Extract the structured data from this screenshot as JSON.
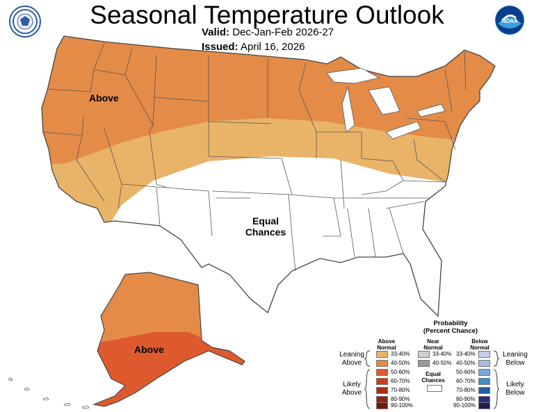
{
  "header": {
    "title": "Seasonal Temperature Outlook",
    "valid_label": "Valid:",
    "valid_value": "Dec-Jan-Feb 2026-27",
    "issued_label": "Issued:",
    "issued_value": "April 16, 2026"
  },
  "logos": {
    "left": "department-of-commerce-seal",
    "right": "noaa-logo",
    "right_text": "NOAA"
  },
  "map": {
    "labels": {
      "conus_above": "Above",
      "equal": "Equal",
      "chances": "Chances",
      "alaska_above": "Above"
    },
    "colors": {
      "above_33_40": "#e9b368",
      "above_40_50": "#e48b48",
      "above_50_60": "#de5a2e",
      "state_border": "#444444",
      "background": "#ffffff"
    }
  },
  "legend": {
    "title": "Probability",
    "subtitle": "(Percent Chance)",
    "above": {
      "header1": "Above",
      "header2": "Normal",
      "items": [
        {
          "label": "33-40%",
          "color": "#e9b368"
        },
        {
          "label": "40-50%",
          "color": "#e48b48"
        },
        {
          "label": "50-60%",
          "color": "#de5a2e"
        },
        {
          "label": "60-70%",
          "color": "#cc3b1d"
        },
        {
          "label": "70-80%",
          "color": "#b02c15"
        },
        {
          "label": "80-90%",
          "color": "#8f2410"
        },
        {
          "label": "90-100%",
          "color": "#6e1b0a"
        }
      ]
    },
    "near": {
      "header1": "Near",
      "header2": "Normal",
      "items": [
        {
          "label": "33-40%",
          "color": "#cfcfcf"
        },
        {
          "label": "40-50%",
          "color": "#9a9a9a"
        }
      ],
      "equal1": "Equal",
      "equal2": "Chances"
    },
    "below": {
      "header1": "Below",
      "header2": "Normal",
      "items": [
        {
          "label": "33-40%",
          "color": "#c6cde8"
        },
        {
          "label": "40-50%",
          "color": "#a7bedf"
        },
        {
          "label": "50-60%",
          "color": "#77a9d6"
        },
        {
          "label": "60-70%",
          "color": "#3f8ec7"
        },
        {
          "label": "70-80%",
          "color": "#1f5ea3"
        },
        {
          "label": "80-90%",
          "color": "#2a2e77"
        },
        {
          "label": "90-100%",
          "color": "#221a50"
        }
      ]
    },
    "side": {
      "leaning1": "Leaning",
      "above": "Above",
      "likely1": "Likely",
      "above2": "Above",
      "leaning2": "Leaning",
      "below": "Below",
      "likely2": "Likely",
      "below2": "Below"
    }
  }
}
